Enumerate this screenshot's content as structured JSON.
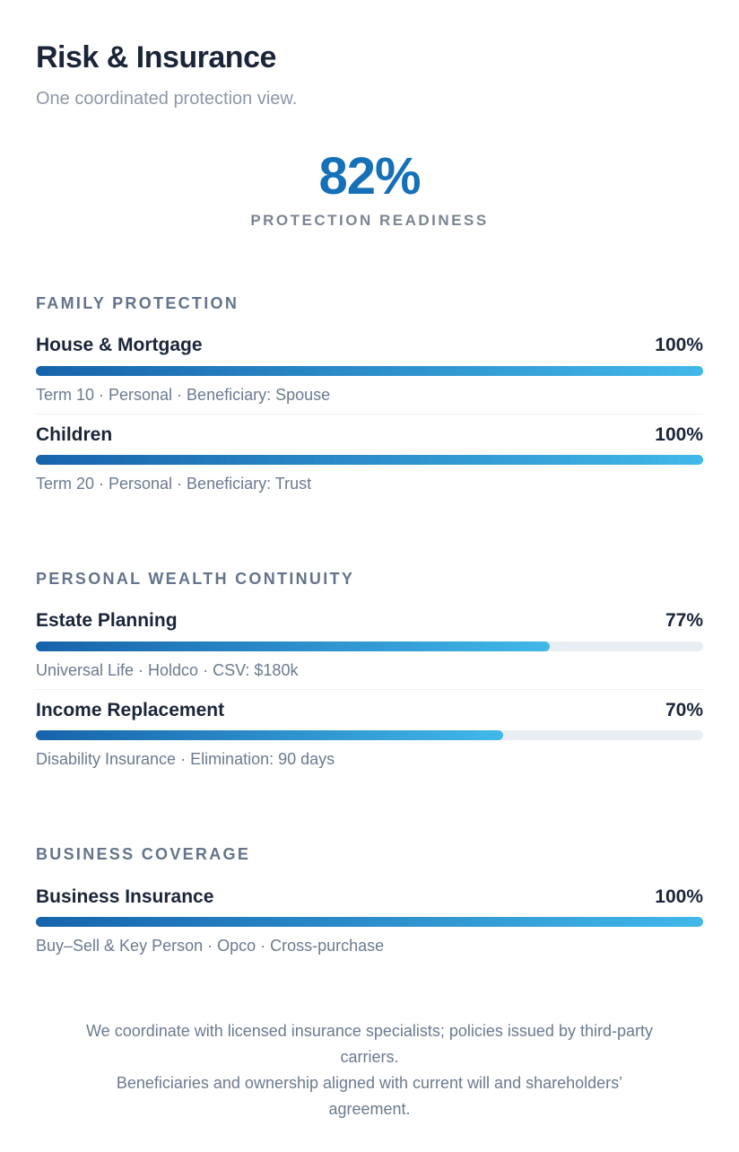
{
  "page": {
    "title": "Risk & Insurance",
    "subtitle": "One coordinated protection view."
  },
  "hero": {
    "score": "82%",
    "label": "PROTECTION READINESS"
  },
  "sections": [
    {
      "heading": "FAMILY PROTECTION",
      "items": [
        {
          "name": "House & Mortgage",
          "percent": "100%",
          "value": 100,
          "caption": "Term 10 · Personal · Beneficiary: Spouse"
        },
        {
          "name": "Children",
          "percent": "100%",
          "value": 100,
          "caption": "Term 20 · Personal · Beneficiary: Trust"
        }
      ]
    },
    {
      "heading": "PERSONAL WEALTH CONTINUITY",
      "items": [
        {
          "name": "Estate Planning",
          "percent": "77%",
          "value": 77,
          "caption": "Universal Life · Holdco · CSV: $180k"
        },
        {
          "name": "Income Replacement",
          "percent": "70%",
          "value": 70,
          "caption": "Disability Insurance · Elimination: 90 days"
        }
      ]
    },
    {
      "heading": "BUSINESS COVERAGE",
      "items": [
        {
          "name": "Business Insurance",
          "percent": "100%",
          "value": 100,
          "caption": "Buy–Sell & Key Person · Opco · Cross-purchase"
        }
      ]
    }
  ],
  "footer": {
    "lines": [
      "We coordinate with licensed insurance specialists; policies issued by third-party",
      "carriers.",
      "Beneficiaries and ownership aligned with current will and shareholders’",
      "agreement."
    ]
  },
  "colors": {
    "accent_blue": "#1570b8",
    "bar_gradient_start": "#1763ab",
    "bar_gradient_end": "#41b8e9",
    "bar_track": "#e9eef4",
    "title_ink": "#1b2539",
    "section_heading": "#63748c",
    "caption_text": "#6b7a90"
  }
}
